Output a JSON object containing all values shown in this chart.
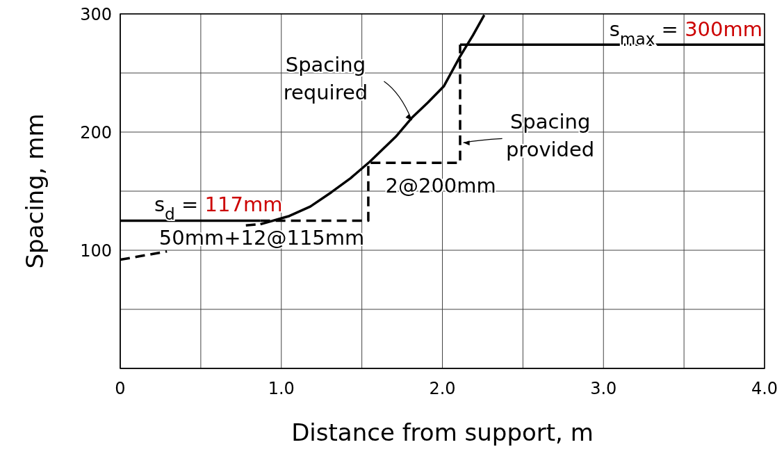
{
  "chart_data": {
    "type": "line",
    "xlabel": "Distance from support, m",
    "ylabel": "Spacing, mm",
    "xlim": [
      0,
      4.0
    ],
    "ylim": [
      0,
      300
    ],
    "xticks": [
      0,
      {
        "value": 0.5,
        "label": null
      },
      {
        "value": 1.0,
        "label": "1.0"
      },
      {
        "value": 1.5,
        "label": null
      },
      {
        "value": 2.0,
        "label": "2.0"
      },
      {
        "value": 2.5,
        "label": null
      },
      {
        "value": 3.0,
        "label": "3.0"
      },
      {
        "value": 3.5,
        "label": null
      },
      {
        "value": 4.0,
        "label": "4.0"
      }
    ],
    "yticks": [
      {
        "value": 0,
        "label": null
      },
      {
        "value": 50,
        "label": null
      },
      100,
      {
        "value": 150,
        "label": null
      },
      200,
      {
        "value": 250,
        "label": null
      },
      300
    ],
    "grid": true,
    "legend": false,
    "marker": "none",
    "series": [
      {
        "color": "#000000",
        "line_style": "dashed",
        "x": [
          0,
          0.29,
          0.5,
          0.78,
          0.86
        ],
        "values": [
          92,
          99,
          null,
          121,
          122
        ]
      },
      {
        "color": "#000000",
        "line_style": "solid",
        "x": [
          0.87,
          1.05,
          1.18,
          1.31,
          1.43,
          1.55,
          1.71,
          1.81,
          1.91,
          2.01,
          2.11,
          2.19,
          2.26
        ],
        "values": [
          122,
          129,
          137,
          149,
          161,
          175,
          196,
          212,
          225,
          239,
          264,
          282,
          299
        ]
      },
      {
        "color": "#000000",
        "line_style": "solid",
        "x": [
          0,
          0.87
        ],
        "values": [
          125,
          125
        ]
      },
      {
        "color": "#000000",
        "line_style": "dashed",
        "x": [
          0.87,
          1.54,
          1.54,
          2.11,
          2.11
        ],
        "values": [
          125,
          125,
          174,
          174,
          274
        ]
      },
      {
        "color": "#000000",
        "line_style": "solid",
        "x": [
          2.11,
          4.0
        ],
        "values": [
          274,
          274
        ]
      }
    ],
    "annotations": [
      {
        "text": "Spacing required",
        "x": 1.81,
        "y": 210
      },
      {
        "text": "Spacing provided",
        "x": 2.13,
        "y": 191
      },
      {
        "text": "2@200mm",
        "x": 1.8,
        "y": 174
      },
      {
        "text": "50mm+12@115mm",
        "x": 0.9,
        "y": 125
      },
      {
        "text": "s$_{d}$ = 117mm",
        "x": 0,
        "y": 125
      },
      {
        "text": "s$_{max}$ = 300mm",
        "x": 4.0,
        "y": 274
      }
    ]
  }
}
